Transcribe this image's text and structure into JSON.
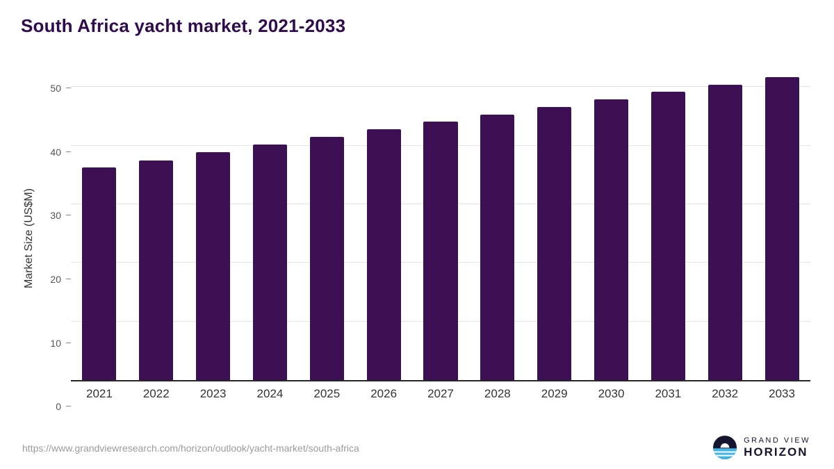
{
  "title": "South Africa yacht market, 2021-2033",
  "chart_data": {
    "type": "bar",
    "title": "South Africa yacht market, 2021-2033",
    "categories": [
      "2021",
      "2022",
      "2023",
      "2024",
      "2025",
      "2026",
      "2027",
      "2028",
      "2029",
      "2030",
      "2031",
      "2032",
      "2033"
    ],
    "values": [
      36.3,
      37.5,
      38.9,
      40.2,
      41.5,
      42.8,
      44.1,
      45.3,
      46.6,
      47.9,
      49.2,
      50.4,
      51.7
    ],
    "xlabel": "",
    "ylabel": "Market Size (US$M)",
    "ylim": [
      0,
      53
    ],
    "yticks": [
      0,
      10,
      20,
      30,
      40,
      50
    ],
    "grid": true,
    "legend": "none",
    "bar_color": "#3d1053"
  },
  "footer": {
    "source_url": "https://www.grandviewresearch.com/horizon/outlook/yacht-market/south-africa"
  },
  "logo": {
    "line1": "GRAND VIEW",
    "line2": "HORIZON"
  },
  "colors": {
    "title": "#2f0b4d",
    "bar": "#3d1053",
    "axis_line": "#262626",
    "grid_line": "#e3e3e3",
    "tick_text": "#555555",
    "source_text": "#9b9b9b",
    "logo_dark": "#15152f",
    "logo_blue": "#3fb4e6"
  }
}
